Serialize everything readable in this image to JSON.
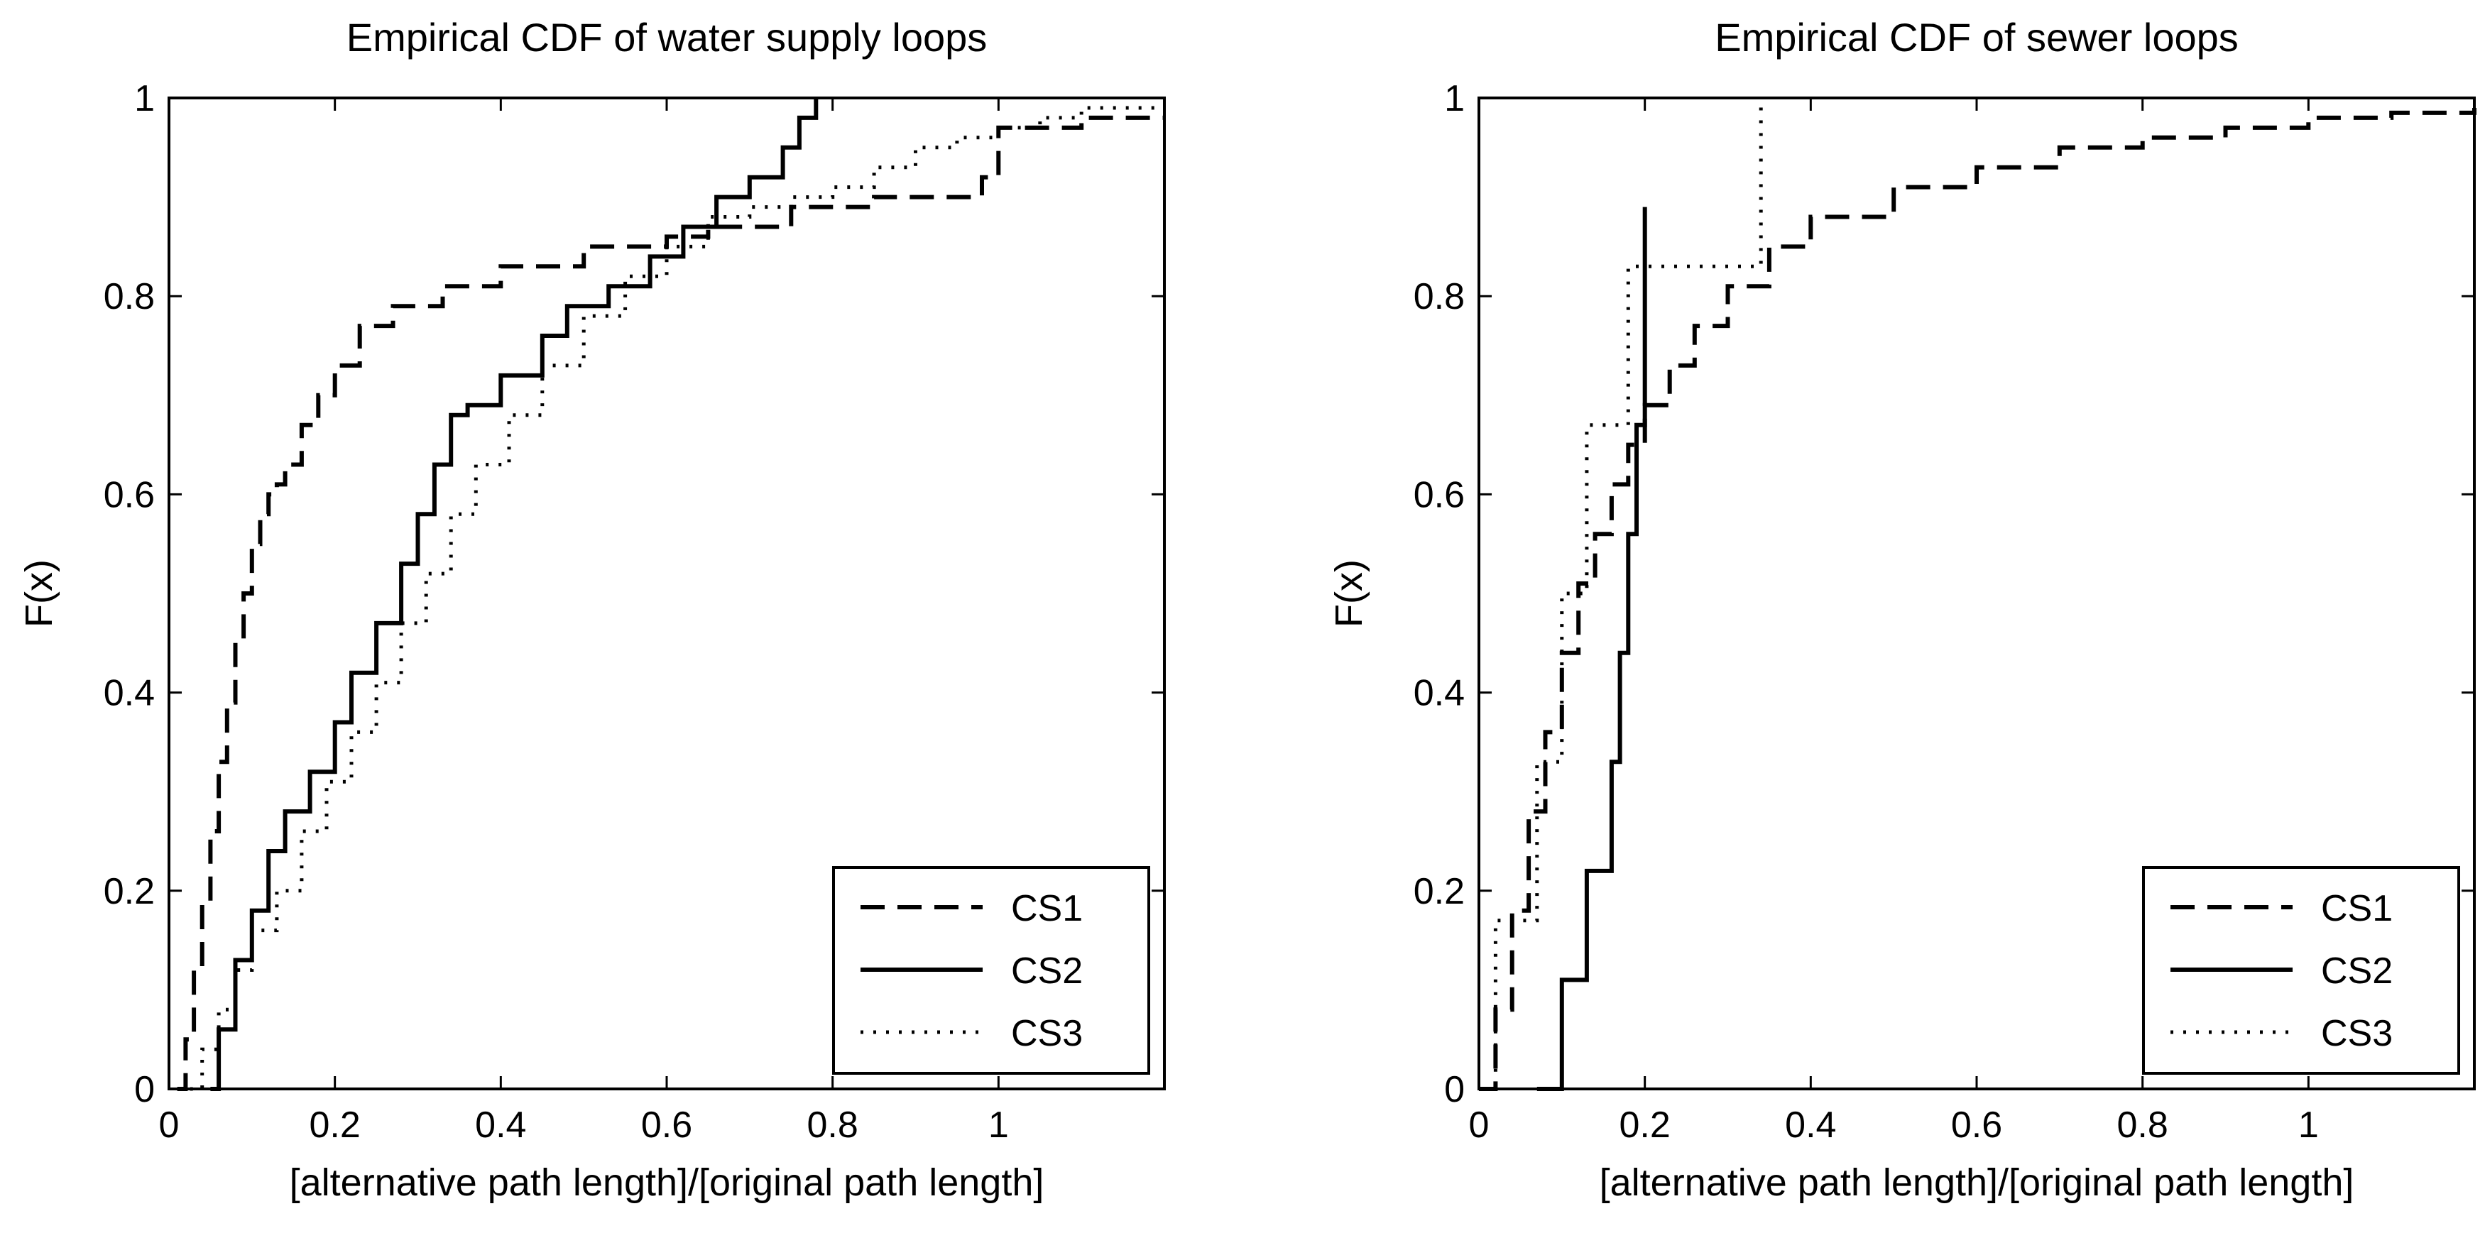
{
  "chart_data": [
    {
      "type": "line",
      "step": true,
      "title": "Empirical CDF of water supply loops",
      "xlabel": "[alternative path length]/[original path length]",
      "ylabel": "F(x)",
      "xlim": [
        0,
        1.2
      ],
      "ylim": [
        0,
        1
      ],
      "xticks": [
        0,
        0.2,
        0.4,
        0.6,
        0.8,
        1
      ],
      "xtick_labels": [
        "0",
        "0.2",
        "0.4",
        "0.6",
        "0.8",
        "1"
      ],
      "yticks": [
        0,
        0.2,
        0.4,
        0.6,
        0.8,
        1
      ],
      "ytick_labels": [
        "0",
        "0.2",
        "0.4",
        "0.6",
        "0.8",
        "1"
      ],
      "legend_position": "bottom-right",
      "series": [
        {
          "name": "CS1",
          "style": "dashed",
          "x": [
            0.01,
            0.02,
            0.03,
            0.04,
            0.05,
            0.06,
            0.07,
            0.08,
            0.09,
            0.1,
            0.11,
            0.12,
            0.13,
            0.14,
            0.16,
            0.18,
            0.2,
            0.23,
            0.27,
            0.33,
            0.4,
            0.5,
            0.6,
            0.65,
            0.75,
            0.85,
            0.98,
            1.0,
            1.1,
            1.2
          ],
          "y": [
            0.0,
            0.05,
            0.12,
            0.19,
            0.26,
            0.33,
            0.39,
            0.45,
            0.5,
            0.55,
            0.58,
            0.6,
            0.61,
            0.63,
            0.67,
            0.7,
            0.73,
            0.77,
            0.79,
            0.81,
            0.83,
            0.85,
            0.86,
            0.87,
            0.89,
            0.9,
            0.92,
            0.97,
            0.98,
            0.98
          ]
        },
        {
          "name": "CS2",
          "style": "solid",
          "x": [
            0.05,
            0.06,
            0.08,
            0.1,
            0.12,
            0.14,
            0.17,
            0.2,
            0.22,
            0.25,
            0.28,
            0.3,
            0.32,
            0.34,
            0.36,
            0.4,
            0.45,
            0.48,
            0.53,
            0.58,
            0.62,
            0.66,
            0.7,
            0.74,
            0.76,
            0.78
          ],
          "y": [
            0.0,
            0.06,
            0.13,
            0.18,
            0.24,
            0.28,
            0.32,
            0.37,
            0.42,
            0.47,
            0.53,
            0.58,
            0.63,
            0.68,
            0.69,
            0.72,
            0.76,
            0.79,
            0.81,
            0.84,
            0.87,
            0.9,
            0.92,
            0.95,
            0.98,
            1.0
          ]
        },
        {
          "name": "CS3",
          "style": "dotted",
          "x": [
            0.01,
            0.04,
            0.06,
            0.08,
            0.1,
            0.13,
            0.16,
            0.19,
            0.22,
            0.25,
            0.28,
            0.31,
            0.34,
            0.37,
            0.41,
            0.45,
            0.5,
            0.55,
            0.6,
            0.65,
            0.7,
            0.75,
            0.8,
            0.85,
            0.9,
            0.95,
            1.0,
            1.05,
            1.1,
            1.2
          ],
          "y": [
            0.0,
            0.04,
            0.08,
            0.12,
            0.16,
            0.2,
            0.26,
            0.31,
            0.36,
            0.41,
            0.47,
            0.52,
            0.58,
            0.63,
            0.68,
            0.73,
            0.78,
            0.82,
            0.85,
            0.88,
            0.89,
            0.9,
            0.91,
            0.93,
            0.95,
            0.96,
            0.97,
            0.98,
            0.99,
            0.99
          ]
        }
      ]
    },
    {
      "type": "line",
      "step": true,
      "title": "Empirical CDF of sewer loops",
      "xlabel": "[alternative path length]/[original path length]",
      "ylabel": "F(x)",
      "xlim": [
        0,
        1.2
      ],
      "ylim": [
        0,
        1
      ],
      "xticks": [
        0,
        0.2,
        0.4,
        0.6,
        0.8,
        1
      ],
      "xtick_labels": [
        "0",
        "0.2",
        "0.4",
        "0.6",
        "0.8",
        "1"
      ],
      "yticks": [
        0,
        0.2,
        0.4,
        0.6,
        0.8,
        1
      ],
      "ytick_labels": [
        "0",
        "0.2",
        "0.4",
        "0.6",
        "0.8",
        "1"
      ],
      "legend_position": "bottom-right",
      "series": [
        {
          "name": "CS1",
          "style": "dashed",
          "x": [
            0.0,
            0.02,
            0.04,
            0.06,
            0.08,
            0.1,
            0.12,
            0.14,
            0.16,
            0.18,
            0.2,
            0.23,
            0.26,
            0.3,
            0.35,
            0.4,
            0.5,
            0.6,
            0.7,
            0.8,
            0.9,
            1.0,
            1.1,
            1.2
          ],
          "y": [
            0.0,
            0.08,
            0.18,
            0.28,
            0.36,
            0.44,
            0.51,
            0.56,
            0.61,
            0.65,
            0.69,
            0.73,
            0.77,
            0.81,
            0.85,
            0.88,
            0.91,
            0.93,
            0.95,
            0.96,
            0.97,
            0.98,
            0.985,
            0.99
          ]
        },
        {
          "name": "CS2",
          "style": "solid",
          "x": [
            0.07,
            0.1,
            0.13,
            0.16,
            0.17,
            0.18,
            0.19,
            0.2
          ],
          "y": [
            0.0,
            0.11,
            0.22,
            0.33,
            0.44,
            0.56,
            0.67,
            0.89
          ]
        },
        {
          "name": "CS3",
          "style": "dotted",
          "x": [
            0.01,
            0.02,
            0.05,
            0.07,
            0.1,
            0.13,
            0.18,
            0.34
          ],
          "y": [
            0.0,
            0.17,
            0.17,
            0.33,
            0.5,
            0.67,
            0.83,
            1.0
          ]
        }
      ]
    }
  ]
}
